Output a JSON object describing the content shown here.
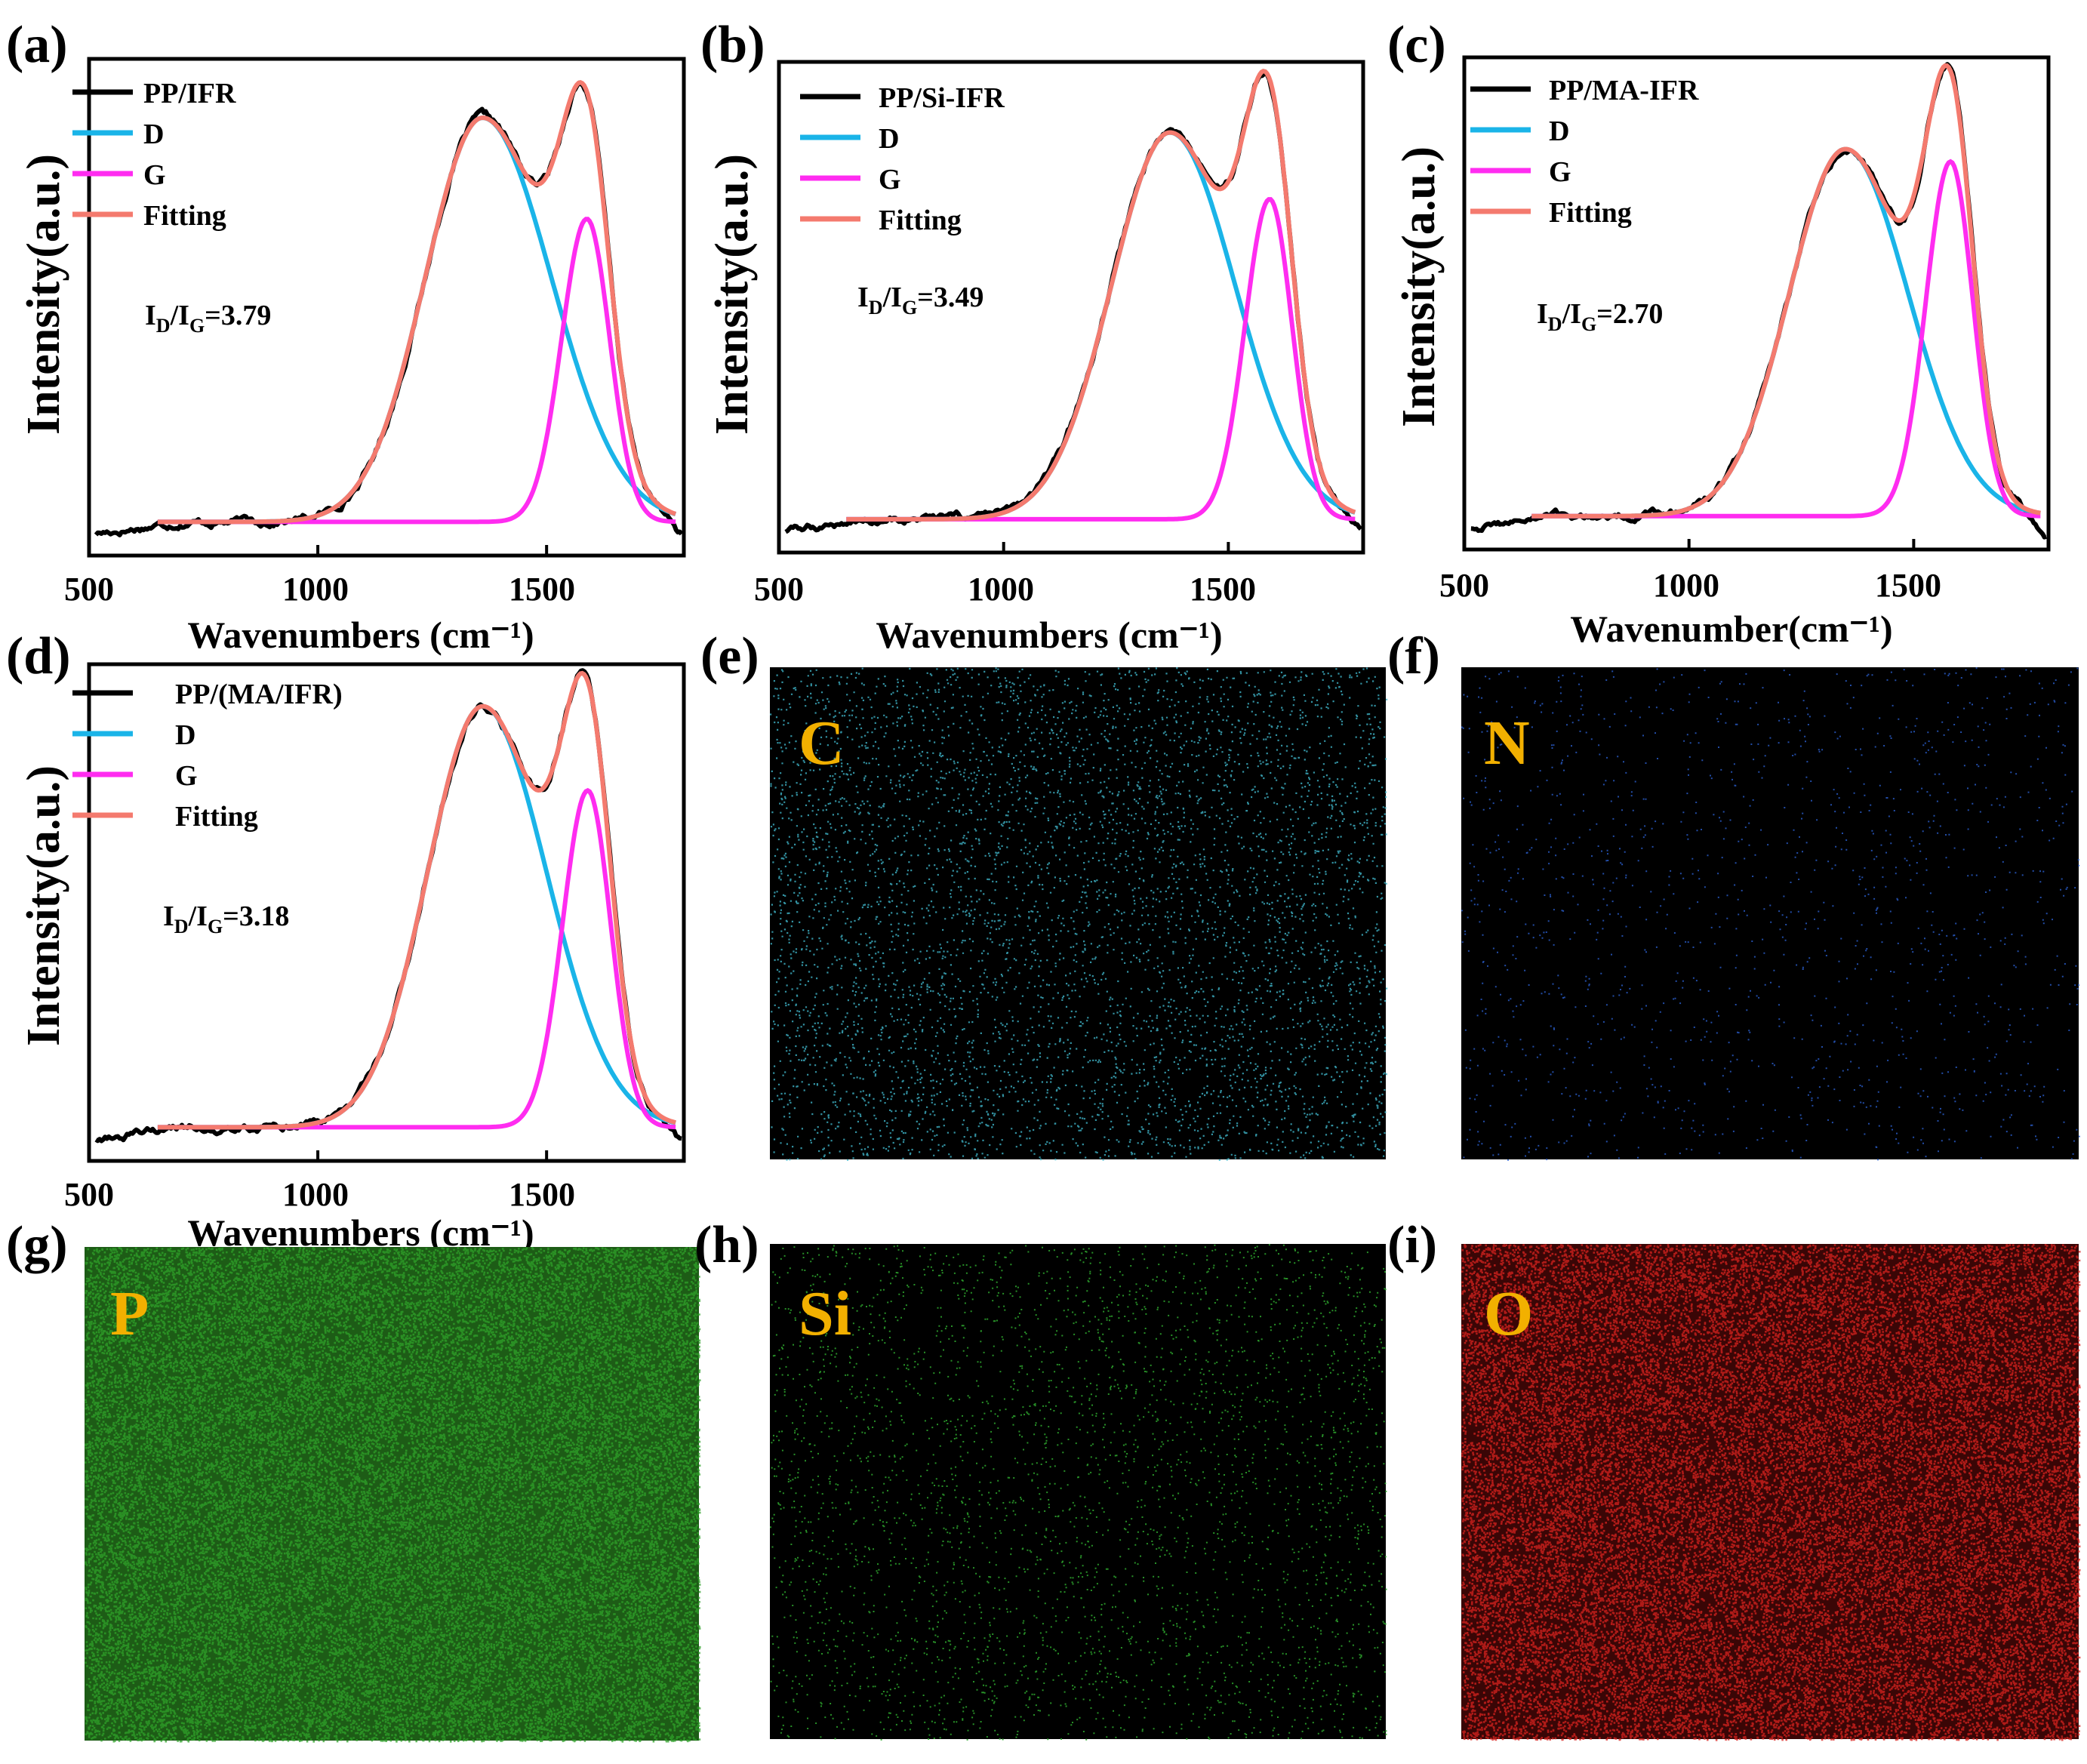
{
  "figure": {
    "panel_labels": [
      "(a)",
      "(b)",
      "(c)",
      "(d)",
      "(e)",
      "(f)",
      "(g)",
      "(h)",
      "(i)"
    ],
    "y_axis_label": "Intensity(a.u.)"
  },
  "chart_data": [
    {
      "type": "line",
      "panel": "(a)",
      "title": "",
      "xlabel": "Wavenumbers (cm⁻¹)",
      "ylabel": "Intensity(a.u.)",
      "xlim": [
        500,
        1800
      ],
      "xticks": [
        500,
        1000,
        1500
      ],
      "ylim": [
        -0.08,
        1.1
      ],
      "yticks": [],
      "legend_position": "top-left",
      "annotation": {
        "prefix": "I",
        "sub1": "D",
        "mid": "/I",
        "sub2": "G",
        "value": "=3.79"
      },
      "series": [
        {
          "name": "PP/IFR",
          "color": "#000000",
          "role": "measured"
        },
        {
          "name": "D",
          "color": "#1ab4e8",
          "role": "D",
          "center": 1360,
          "amplitude": 0.96,
          "width_left": 125,
          "width_right": 150
        },
        {
          "name": "G",
          "color": "#ff2cf0",
          "role": "G",
          "center": 1588,
          "amplitude": 0.72,
          "width_left": 55,
          "width_right": 50
        },
        {
          "name": "Fitting",
          "color": "#f47a6e",
          "role": "fit"
        }
      ],
      "baseline": 0.0
    },
    {
      "type": "line",
      "panel": "(b)",
      "title": "",
      "xlabel": "Wavenumbers (cm⁻¹)",
      "ylabel": "Intensity(a.u.)",
      "xlim": [
        500,
        1800
      ],
      "xticks": [
        500,
        1000,
        1500
      ],
      "ylim": [
        -0.08,
        1.1
      ],
      "yticks": [],
      "legend_position": "top-left",
      "annotation": {
        "prefix": "I",
        "sub1": "D",
        "mid": "/I",
        "sub2": "G",
        "value": "=3.49"
      },
      "series": [
        {
          "name": "PP/Si-IFR",
          "color": "#000000",
          "role": "measured"
        },
        {
          "name": "D",
          "color": "#1ab4e8",
          "role": "D",
          "center": 1370,
          "amplitude": 0.93,
          "width_left": 130,
          "width_right": 145
        },
        {
          "name": "G",
          "color": "#ff2cf0",
          "role": "G",
          "center": 1592,
          "amplitude": 0.77,
          "width_left": 55,
          "width_right": 50
        },
        {
          "name": "Fitting",
          "color": "#f47a6e",
          "role": "fit"
        }
      ],
      "baseline": 0.0
    },
    {
      "type": "line",
      "panel": "(c)",
      "title": "",
      "xlabel": "Wavenumber(cm⁻¹)",
      "ylabel": "Intensity(a.u.)",
      "xlim": [
        500,
        1800
      ],
      "xticks": [
        500,
        1000,
        1500
      ],
      "ylim": [
        -0.08,
        1.1
      ],
      "yticks": [],
      "legend_position": "top-left",
      "annotation": {
        "prefix": "I",
        "sub1": "D",
        "mid": "/I",
        "sub2": "G",
        "value": "=2.70"
      },
      "series": [
        {
          "name": "PP/MA-IFR",
          "color": "#000000",
          "role": "measured"
        },
        {
          "name": "D",
          "color": "#1ab4e8",
          "role": "D",
          "center": 1348,
          "amplitude": 0.88,
          "width_left": 125,
          "width_right": 140
        },
        {
          "name": "G",
          "color": "#ff2cf0",
          "role": "G",
          "center": 1582,
          "amplitude": 0.85,
          "width_left": 55,
          "width_right": 50
        },
        {
          "name": "Fitting",
          "color": "#f47a6e",
          "role": "fit"
        }
      ],
      "baseline": 0.0
    },
    {
      "type": "line",
      "panel": "(d)",
      "title": "",
      "xlabel": "Wavenumbers (cm⁻¹)",
      "ylabel": "Intensity(a.u.)",
      "xlim": [
        500,
        1800
      ],
      "xticks": [
        500,
        1000,
        1500
      ],
      "ylim": [
        -0.08,
        1.1
      ],
      "yticks": [],
      "legend_position": "top-left",
      "annotation": {
        "prefix": "I",
        "sub1": "D",
        "mid": "/I",
        "sub2": "G",
        "value": "=3.18"
      },
      "series": [
        {
          "name": "PP/(MA/IFR)",
          "color": "#000000",
          "role": "measured"
        },
        {
          "name": "D",
          "color": "#1ab4e8",
          "role": "D",
          "center": 1360,
          "amplitude": 1.0,
          "width_left": 120,
          "width_right": 140
        },
        {
          "name": "G",
          "color": "#ff2cf0",
          "role": "G",
          "center": 1590,
          "amplitude": 0.8,
          "width_left": 55,
          "width_right": 50
        },
        {
          "name": "Fitting",
          "color": "#f47a6e",
          "role": "fit"
        }
      ],
      "baseline": 0.0
    }
  ],
  "maps": [
    {
      "panel": "(e)",
      "element": "C",
      "dot_color": "#3fb4c8",
      "background": "#000000",
      "density": "sparse"
    },
    {
      "panel": "(f)",
      "element": "N",
      "dot_color": "#2a5fd0",
      "background": "#000000",
      "density": "very sparse"
    },
    {
      "panel": "(g)",
      "element": "P",
      "dot_color": "#2fa22a",
      "background": "#1d5c16",
      "density": "dense"
    },
    {
      "panel": "(h)",
      "element": "Si",
      "dot_color": "#2ea82e",
      "background": "#000000",
      "density": "sparse"
    },
    {
      "panel": "(i)",
      "element": "O",
      "dot_color": "#d8231f",
      "background": "#3a0606",
      "density": "dense"
    }
  ],
  "colors": {
    "element_label": "#f2b000",
    "frame": "#000000"
  }
}
